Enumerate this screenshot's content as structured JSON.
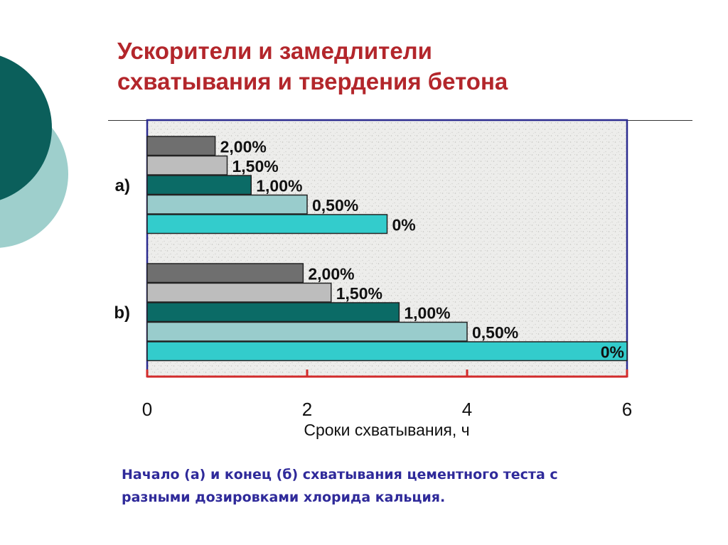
{
  "slide": {
    "title_lines": [
      "Ускорители и замедлители",
      "схватывания и твердения бетона"
    ],
    "caption_lines": [
      "Начало (а) и конец (б) схватывания цементного теста с",
      "разными дозировками хлорида кальция."
    ]
  },
  "colors": {
    "title": "#b3262b",
    "caption": "#2f2a9a",
    "deco_dark": "#0b5f5b",
    "deco_light": "#9ecfcc",
    "plot_frame": "#2b2b8f",
    "x_axis": "#d22b2b"
  },
  "chart_data": {
    "type": "bar",
    "orientation": "horizontal",
    "title": "",
    "xlabel": "Сроки схватывания, ч",
    "ylabel": "",
    "xlim": [
      0,
      6
    ],
    "x_ticks": [
      "0",
      "2",
      "4",
      "6"
    ],
    "grid": false,
    "legend": "none",
    "groups": [
      {
        "label": "a)",
        "bars": [
          {
            "label": "2,00%",
            "value": 0.85,
            "color": "#6f6f6f"
          },
          {
            "label": "1,50%",
            "value": 1.0,
            "color": "#bdbdbd"
          },
          {
            "label": "1,00%",
            "value": 1.3,
            "color": "#0b6b66"
          },
          {
            "label": "0,50%",
            "value": 2.0,
            "color": "#99cccc"
          },
          {
            "label": "0%",
            "value": 3.0,
            "color": "#33cccc"
          }
        ]
      },
      {
        "label": "b)",
        "bars": [
          {
            "label": "2,00%",
            "value": 1.95,
            "color": "#6f6f6f"
          },
          {
            "label": "1,50%",
            "value": 2.3,
            "color": "#bdbdbd"
          },
          {
            "label": "1,00%",
            "value": 3.15,
            "color": "#0b6b66"
          },
          {
            "label": "0,50%",
            "value": 4.0,
            "color": "#99cccc"
          },
          {
            "label": "0%",
            "value": 6.0,
            "color": "#33cccc"
          }
        ]
      }
    ]
  }
}
